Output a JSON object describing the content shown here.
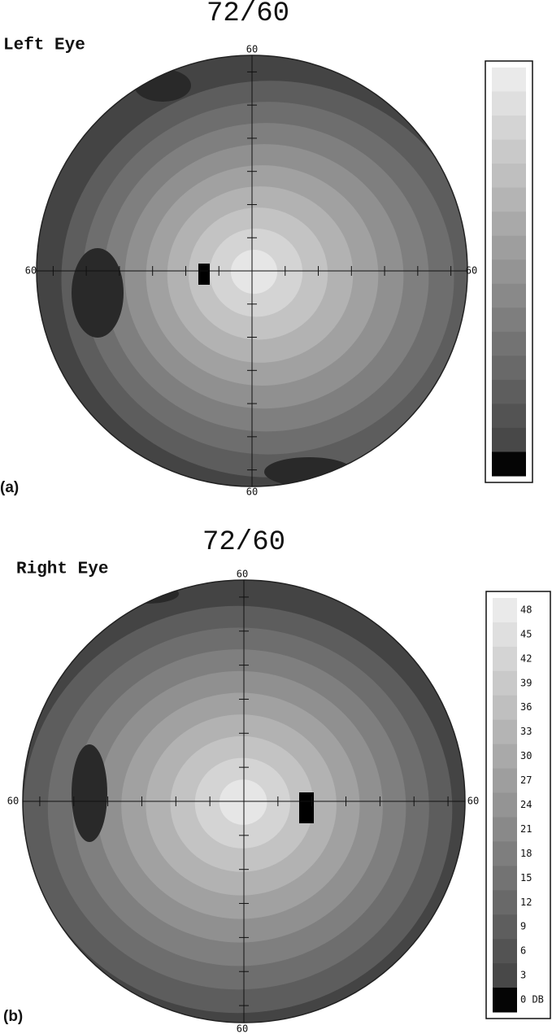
{
  "panels": [
    {
      "title": "72/60",
      "eye": "Left Eye",
      "letter": "(a)",
      "axis_labels": {
        "top": "60",
        "bottom": "60",
        "left": "60",
        "right": "60"
      }
    },
    {
      "title": "72/60",
      "eye": "Right Eye",
      "letter": "(b)",
      "axis_labels": {
        "top": "60",
        "bottom": "60",
        "left": "60",
        "right": "60"
      },
      "legend": [
        "48",
        "45",
        "42",
        "39",
        "36",
        "33",
        "30",
        "27",
        "24",
        "21",
        "18",
        "15",
        "12",
        "9",
        "6",
        "3",
        "0 DB"
      ]
    }
  ]
}
